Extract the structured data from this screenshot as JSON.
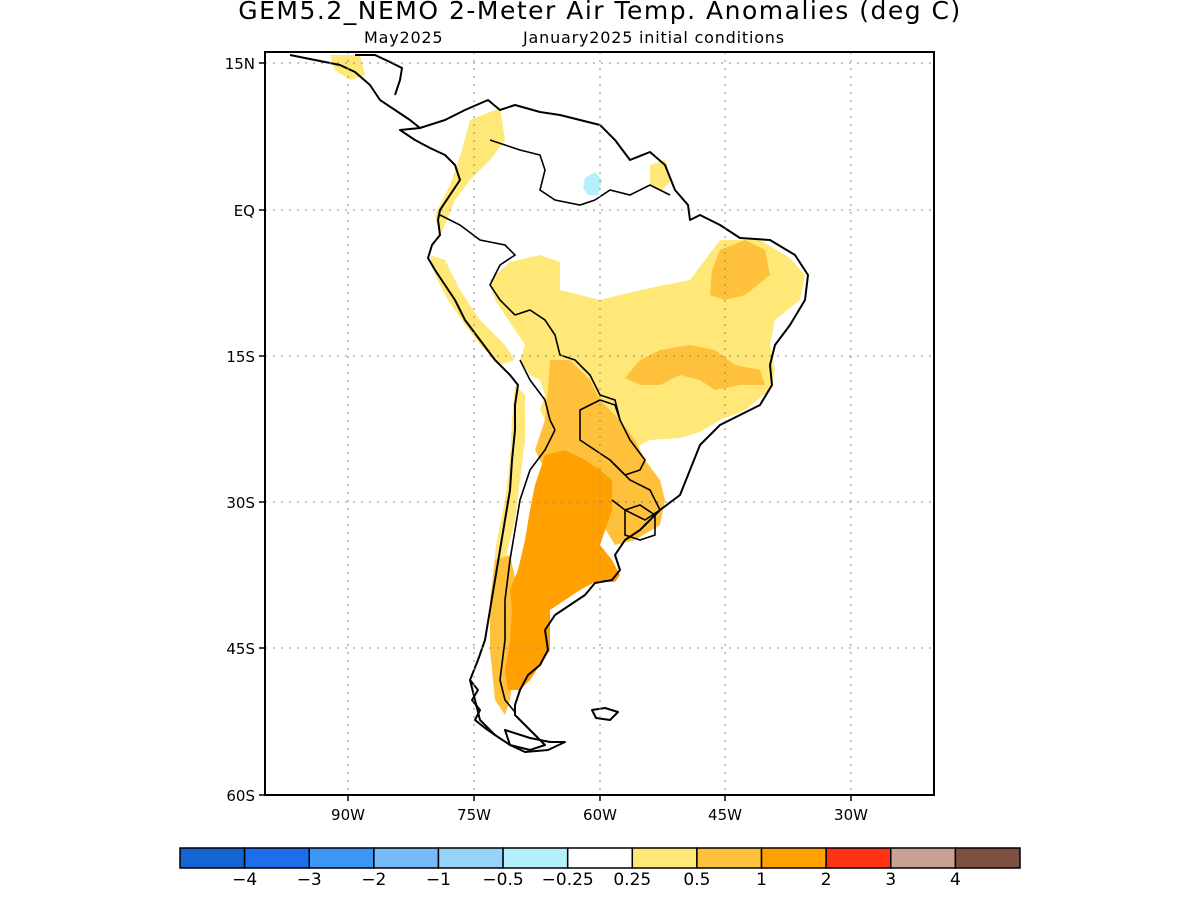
{
  "title": "GEM5.2_NEMO 2-Meter Air Temp. Anomalies (deg C)",
  "subtitle_left": "May2025",
  "subtitle_right": "January2025 initial conditions",
  "axes": {
    "lat_labels": [
      "15N",
      "EQ",
      "15S",
      "30S",
      "45S",
      "60S"
    ],
    "lon_labels": [
      "90W",
      "75W",
      "60W",
      "45W",
      "30W"
    ]
  },
  "colorbar": {
    "colors": [
      "#1464d2",
      "#1e6eeb",
      "#3c96f5",
      "#78b9fa",
      "#96d2fa",
      "#b4f0fa",
      "#ffffff",
      "#ffe878",
      "#ffc03c",
      "#ffa000",
      "#ff3214",
      "#c8a096",
      "#7d5041"
    ],
    "labels": [
      "−4",
      "−3",
      "−2",
      "−1",
      "−0.5",
      "−0.25",
      "0.25",
      "0.5",
      "1",
      "2",
      "3",
      "4"
    ]
  },
  "legend_values": [
    -4,
    -3,
    -2,
    -1,
    -0.5,
    -0.25,
    0.25,
    0.5,
    1,
    2,
    3,
    4
  ],
  "anomaly_colors": {
    "light": "#ffe878",
    "medium": "#ffc03c",
    "strong": "#ffa000",
    "cool": "#b4f0fa"
  }
}
